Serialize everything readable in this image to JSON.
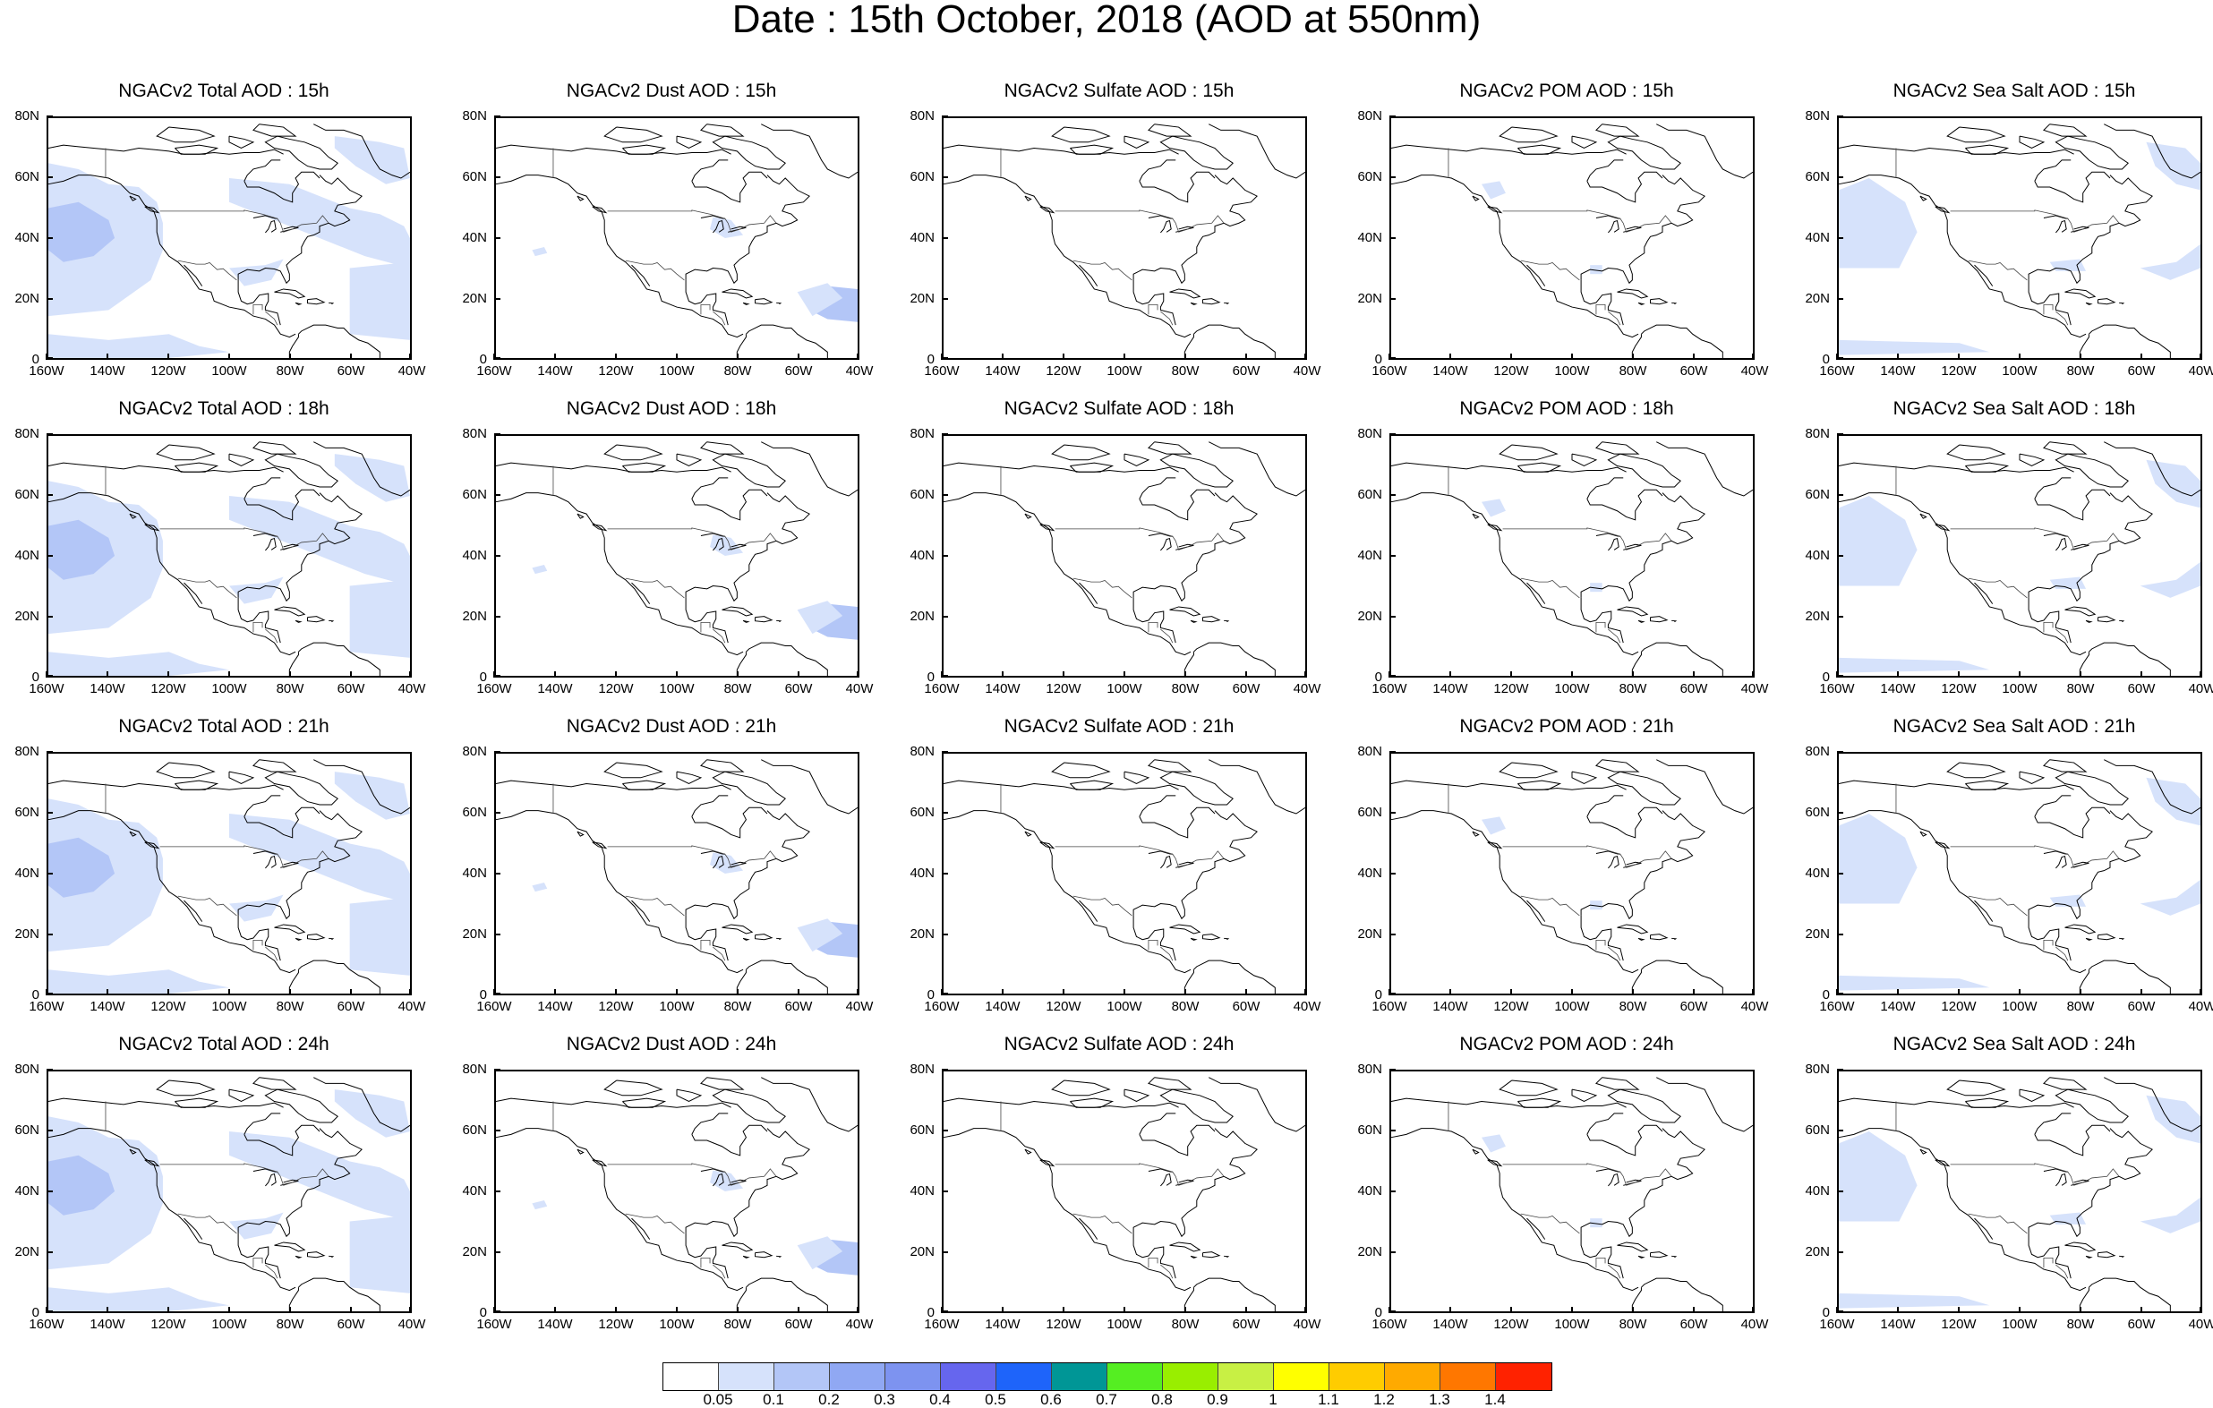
{
  "page": {
    "title": "Date : 15th October, 2018 (AOD at 550nm)"
  },
  "panels": [
    {
      "title": "NGACv2 Total AOD : 15h",
      "product": "total"
    },
    {
      "title": "NGACv2 Dust AOD : 15h",
      "product": "dust"
    },
    {
      "title": "NGACv2 Sulfate AOD : 15h",
      "product": "sulfate"
    },
    {
      "title": "NGACv2 POM AOD : 15h",
      "product": "pom"
    },
    {
      "title": "NGACv2 Sea Salt AOD : 15h",
      "product": "seasalt"
    },
    {
      "title": "NGACv2 Total AOD : 18h",
      "product": "total"
    },
    {
      "title": "NGACv2 Dust AOD : 18h",
      "product": "dust"
    },
    {
      "title": "NGACv2 Sulfate AOD : 18h",
      "product": "sulfate"
    },
    {
      "title": "NGACv2 POM AOD : 18h",
      "product": "pom"
    },
    {
      "title": "NGACv2 Sea Salt AOD : 18h",
      "product": "seasalt"
    },
    {
      "title": "NGACv2 Total AOD : 21h",
      "product": "total"
    },
    {
      "title": "NGACv2 Dust AOD : 21h",
      "product": "dust"
    },
    {
      "title": "NGACv2 Sulfate AOD : 21h",
      "product": "sulfate"
    },
    {
      "title": "NGACv2 POM AOD : 21h",
      "product": "pom"
    },
    {
      "title": "NGACv2 Sea Salt AOD : 21h",
      "product": "seasalt"
    },
    {
      "title": "NGACv2 Total AOD : 24h",
      "product": "total"
    },
    {
      "title": "NGACv2 Dust AOD : 24h",
      "product": "dust"
    },
    {
      "title": "NGACv2 Sulfate AOD : 24h",
      "product": "sulfate"
    },
    {
      "title": "NGACv2 POM AOD : 24h",
      "product": "pom"
    },
    {
      "title": "NGACv2 Sea Salt  AOD : 24h",
      "product": "seasalt"
    }
  ],
  "axes": {
    "lat_labels": [
      "80N",
      "60N",
      "40N",
      "20N",
      "0"
    ],
    "lon_labels": [
      "160W",
      "140W",
      "120W",
      "100W",
      "80W",
      "60W",
      "40W"
    ]
  },
  "colorbar": {
    "colors": [
      "#ffffff",
      "#d6e2fb",
      "#b3c6f7",
      "#90a8f3",
      "#7d93f0",
      "#6666ee",
      "#1e64fa",
      "#009696",
      "#55ee22",
      "#99ee00",
      "#c8f044",
      "#ffff00",
      "#ffcc00",
      "#ffaa00",
      "#ff7700",
      "#ff2200"
    ],
    "labels": [
      "0.05",
      "0.1",
      "0.2",
      "0.3",
      "0.4",
      "0.5",
      "0.6",
      "0.7",
      "0.8",
      "0.9",
      "1",
      "1.1",
      "1.2",
      "1.3",
      "1.4"
    ]
  },
  "colors": {
    "aod_light": "#d6e2fb",
    "aod_medium": "#b3c6f7",
    "coastline": "#000000"
  }
}
